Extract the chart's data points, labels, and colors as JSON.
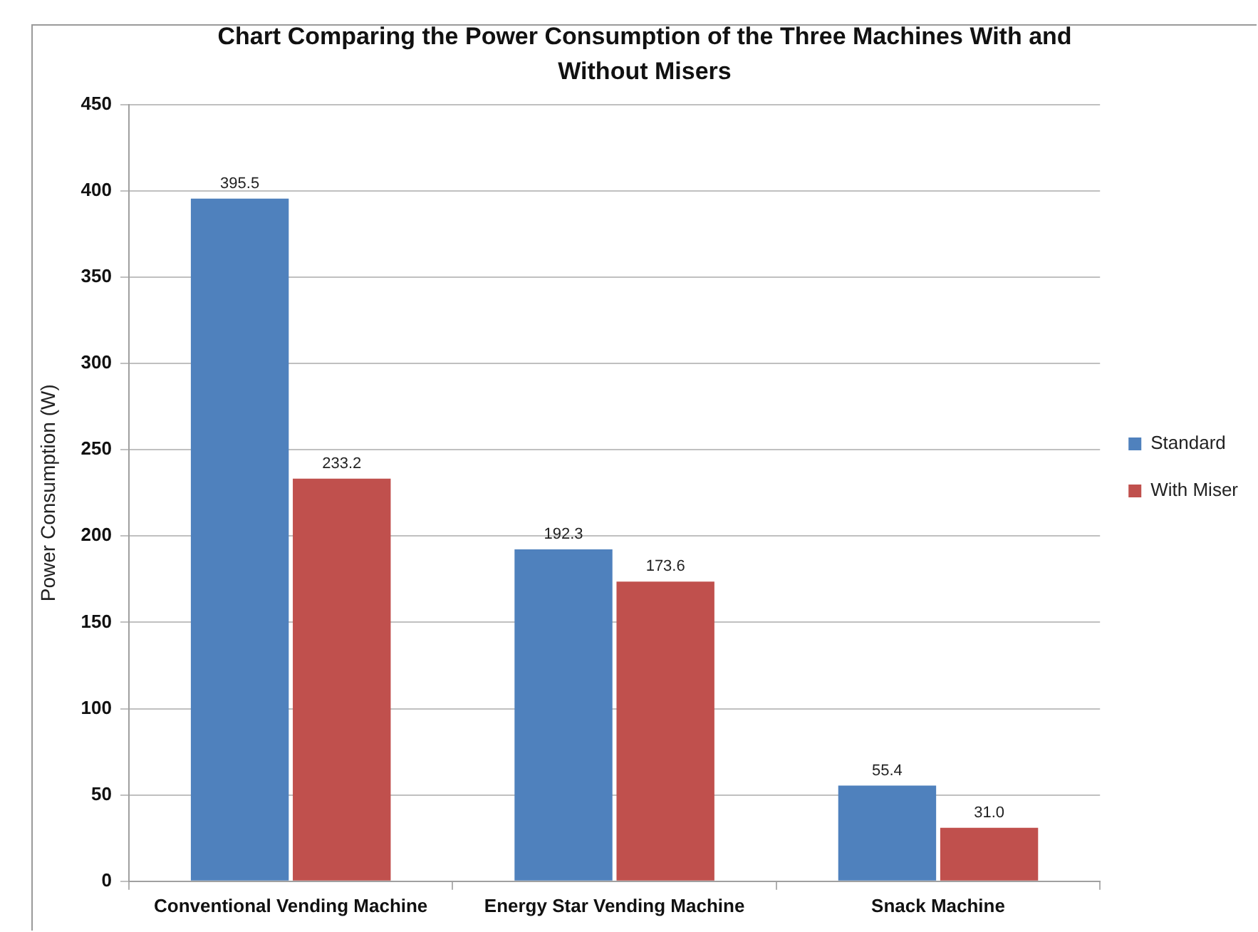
{
  "chart_data": {
    "type": "bar",
    "title": "Chart Comparing the Power Consumption of the Three Machines With and Without Misers",
    "ylabel": "Power Consumption (W)",
    "categories": [
      "Conventional Vending Machine",
      "Energy Star Vending Machine",
      "Snack Machine"
    ],
    "series": [
      {
        "name": "Standard",
        "color": "#4f81bd",
        "values": [
          395.5,
          192.3,
          55.4
        ],
        "value_labels": [
          "395.5",
          "192.3",
          "55.4"
        ]
      },
      {
        "name": "With Miser",
        "color": "#c0504d",
        "values": [
          233.2,
          173.6,
          31.0
        ],
        "value_labels": [
          "233.2",
          "173.6",
          "31.0"
        ]
      }
    ],
    "ylim": [
      0,
      450
    ],
    "yticks": [
      0,
      50,
      100,
      150,
      200,
      250,
      300,
      350,
      400,
      450
    ],
    "grid": "y",
    "legend": "right"
  }
}
